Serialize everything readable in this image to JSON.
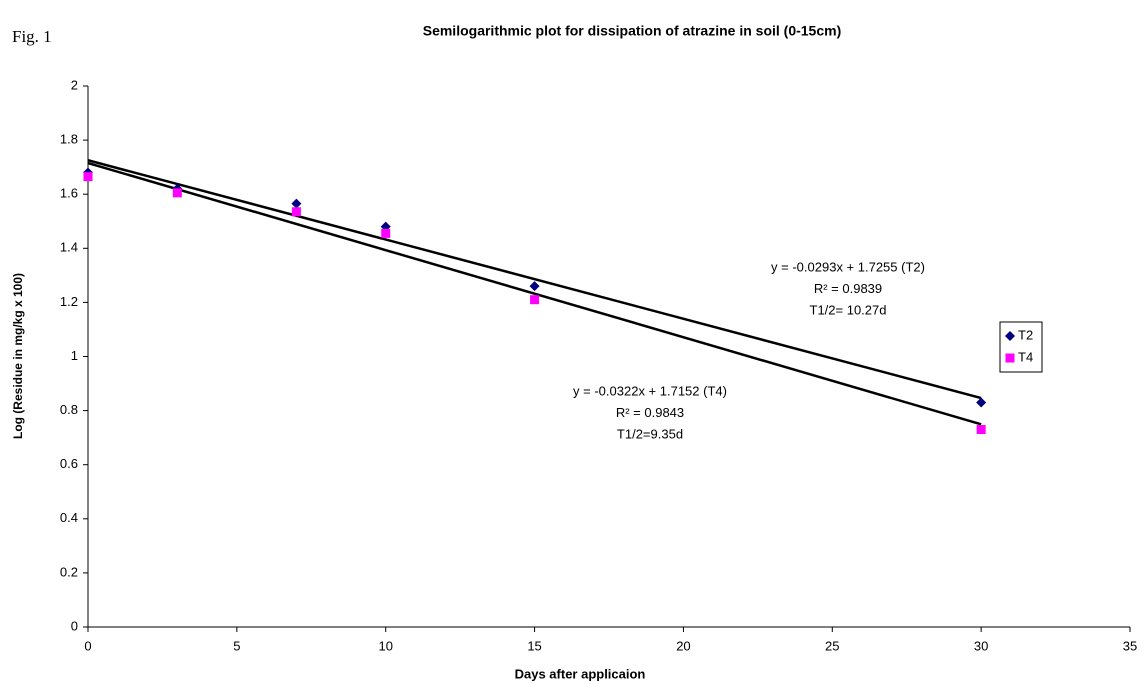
{
  "figure_label": "Fig. 1",
  "chart_data": {
    "type": "scatter",
    "title": "Semilogarithmic plot for dissipation of atrazine in soil (0-15cm)",
    "x_label": "Days after applicaion",
    "y_label": "Log (Residue in mg/kg x 100)",
    "xlim": [
      0,
      35
    ],
    "xticks": [
      0,
      5,
      10,
      15,
      20,
      25,
      30,
      35
    ],
    "ylim": [
      0,
      2
    ],
    "yticks": [
      0,
      0.2,
      0.4,
      0.6,
      0.8,
      1,
      1.2,
      1.4,
      1.6,
      1.8,
      2
    ],
    "grid": false,
    "legend": "right",
    "x": [
      0,
      3,
      7,
      10,
      15,
      30
    ],
    "series": [
      {
        "name": "T2",
        "color": "#000080",
        "marker": "diamond",
        "values": [
          1.68,
          1.62,
          1.565,
          1.48,
          1.26,
          0.83
        ],
        "trendline": {
          "slope": -0.0293,
          "intercept": 1.7255
        },
        "annotation": [
          "y = -0.0293x + 1.7255 (T2)",
          "R² = 0.9839",
          "T1/2= 10.27d"
        ]
      },
      {
        "name": "T4",
        "color": "#ff00ff",
        "marker": "square",
        "values": [
          1.665,
          1.605,
          1.535,
          1.455,
          1.21,
          0.73
        ],
        "trendline": {
          "slope": -0.0322,
          "intercept": 1.7152
        },
        "annotation": [
          "y = -0.0322x + 1.7152 (T4)",
          "R² = 0.9843",
          "T1/2=9.35d"
        ]
      }
    ]
  }
}
